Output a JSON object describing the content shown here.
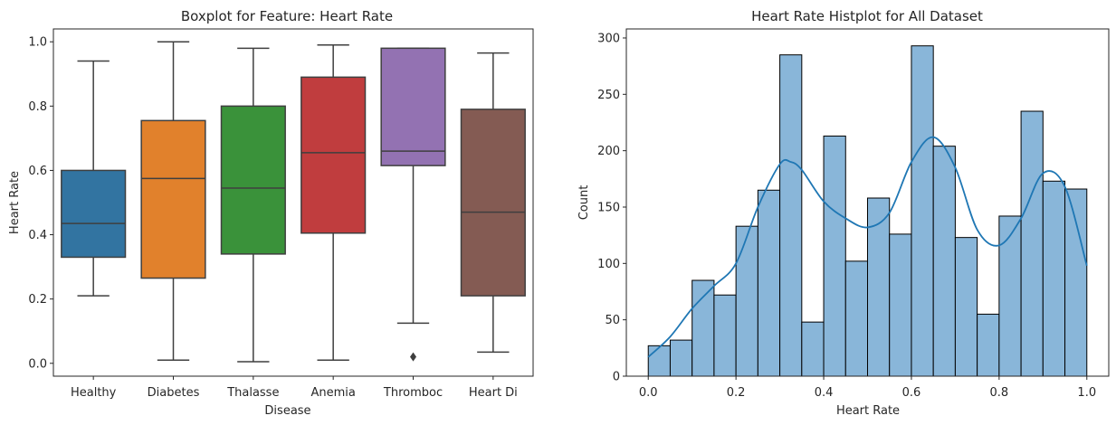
{
  "chart_data": [
    {
      "type": "boxplot",
      "title": "Boxplot for Feature: Heart Rate",
      "xlabel": "Disease",
      "ylabel": "Heart Rate",
      "ylim": [
        -0.04,
        1.04
      ],
      "yticks": [
        "0.0",
        "0.2",
        "0.4",
        "0.6",
        "0.8",
        "1.0"
      ],
      "grid": false,
      "categories": [
        "Healthy",
        "Diabetes",
        "Thalasse",
        "Anemia",
        "Thromboc",
        "Heart Di"
      ],
      "boxes": [
        {
          "name": "Healthy",
          "whisker_low": 0.21,
          "q1": 0.33,
          "median": 0.435,
          "q3": 0.6,
          "whisker_high": 0.94,
          "outliers": [],
          "color": "#3274a1"
        },
        {
          "name": "Diabetes",
          "whisker_low": 0.01,
          "q1": 0.265,
          "median": 0.575,
          "q3": 0.755,
          "whisker_high": 1.0,
          "outliers": [],
          "color": "#e1812c"
        },
        {
          "name": "Thalasse",
          "whisker_low": 0.005,
          "q1": 0.34,
          "median": 0.545,
          "q3": 0.8,
          "whisker_high": 0.98,
          "outliers": [],
          "color": "#3a923a"
        },
        {
          "name": "Anemia",
          "whisker_low": 0.01,
          "q1": 0.405,
          "median": 0.655,
          "q3": 0.89,
          "whisker_high": 0.99,
          "outliers": [],
          "color": "#c03d3e"
        },
        {
          "name": "Thromboc",
          "whisker_low": 0.125,
          "q1": 0.615,
          "median": 0.66,
          "q3": 0.98,
          "whisker_high": 0.98,
          "outliers": [
            0.02
          ],
          "color": "#9372b2"
        },
        {
          "name": "Heart Di",
          "whisker_low": 0.035,
          "q1": 0.21,
          "median": 0.47,
          "q3": 0.79,
          "whisker_high": 0.965,
          "outliers": [],
          "color": "#845b53"
        }
      ]
    },
    {
      "type": "histogram",
      "title": "Heart Rate Histplot for All Dataset",
      "xlabel": "Heart Rate",
      "ylabel": "Count",
      "xlim": [
        -0.05,
        1.05
      ],
      "ylim": [
        0,
        308
      ],
      "xticks": [
        "0.0",
        "0.2",
        "0.4",
        "0.6",
        "0.8",
        "1.0"
      ],
      "yticks": [
        "0",
        "50",
        "100",
        "150",
        "200",
        "250",
        "300"
      ],
      "grid": false,
      "bin_width": 0.05,
      "bin_edges_start": 0.0,
      "counts": [
        27,
        32,
        85,
        72,
        133,
        165,
        285,
        48,
        213,
        102,
        158,
        126,
        293,
        204,
        123,
        55,
        142,
        235,
        173,
        166
      ],
      "bar_color": "#89b6d9",
      "kde_color": "#1f77b4",
      "kde": {
        "x": [
          0.0,
          0.05,
          0.1,
          0.15,
          0.2,
          0.25,
          0.3,
          0.325,
          0.35,
          0.4,
          0.45,
          0.5,
          0.55,
          0.6,
          0.65,
          0.7,
          0.75,
          0.8,
          0.85,
          0.9,
          0.95,
          1.0
        ],
        "y": [
          17,
          35,
          60,
          80,
          100,
          150,
          188,
          190,
          183,
          155,
          140,
          132,
          145,
          190,
          212,
          185,
          130,
          116,
          140,
          180,
          168,
          98
        ]
      }
    }
  ]
}
